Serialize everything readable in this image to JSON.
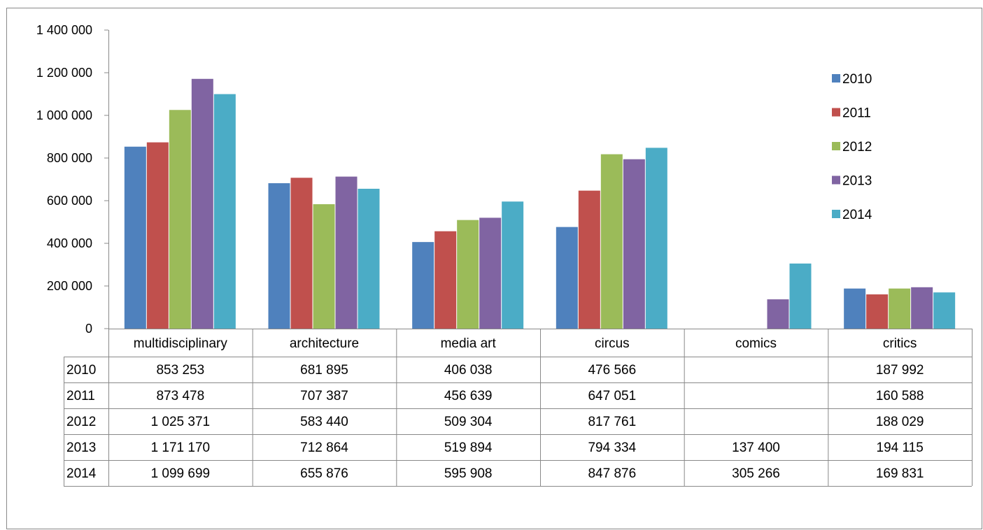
{
  "chart_data": {
    "type": "bar",
    "categories": [
      "multidisciplinary",
      "architecture",
      "media art",
      "circus",
      "comics",
      "critics"
    ],
    "series": [
      {
        "name": "2010",
        "color": "#4F81BD",
        "values": [
          853253,
          681895,
          406038,
          476566,
          null,
          187992
        ],
        "labels": [
          "853 253",
          "681 895",
          "406 038",
          "476 566",
          "",
          "187 992"
        ]
      },
      {
        "name": "2011",
        "color": "#C0504D",
        "values": [
          873478,
          707387,
          456639,
          647051,
          null,
          160588
        ],
        "labels": [
          "873 478",
          "707 387",
          "456 639",
          "647 051",
          "",
          "160 588"
        ]
      },
      {
        "name": "2012",
        "color": "#9BBB59",
        "values": [
          1025371,
          583440,
          509304,
          817761,
          null,
          188029
        ],
        "labels": [
          "1 025 371",
          "583 440",
          "509 304",
          "817 761",
          "",
          "188 029"
        ]
      },
      {
        "name": "2013",
        "color": "#8064A2",
        "values": [
          1171170,
          712864,
          519894,
          794334,
          137400,
          194115
        ],
        "labels": [
          "1 171 170",
          "712 864",
          "519 894",
          "794 334",
          "137 400",
          "194 115"
        ]
      },
      {
        "name": "2014",
        "color": "#4BACC6",
        "values": [
          1099699,
          655876,
          595908,
          847876,
          305266,
          169831
        ],
        "labels": [
          "1 099 699",
          "655 876",
          "595 908",
          "847 876",
          "305 266",
          "169 831"
        ]
      }
    ],
    "yticks": [
      "0",
      "200 000",
      "400 000",
      "600 000",
      "800 000",
      "1 000 000",
      "1 200 000",
      "1 400 000"
    ],
    "ylim": [
      0,
      1400000
    ],
    "legend_position": "right",
    "data_table": true,
    "grid": false
  }
}
